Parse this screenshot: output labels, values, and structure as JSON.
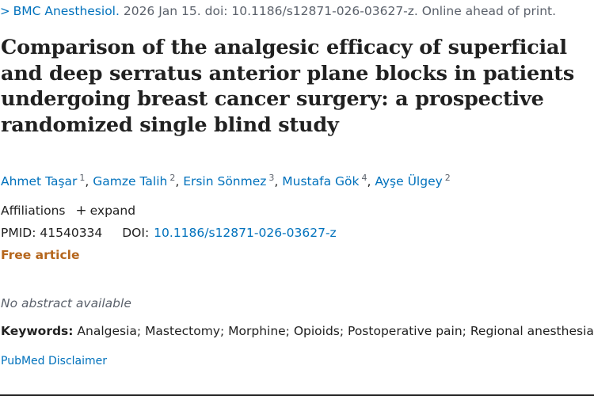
{
  "citation": {
    "chevron": ">",
    "journal": "BMC Anesthesiol.",
    "details": " 2026 Jan 15. doi: 10.1186/s12871-026-03627-z. Online ahead of print."
  },
  "title": "Comparison of the analgesic efficacy of superficial and deep serratus anterior plane blocks in patients undergoing breast cancer surgery: a prospective randomized single blind study",
  "authors": [
    {
      "name": "Ahmet Taşar",
      "sup": "1"
    },
    {
      "name": "Gamze Talih",
      "sup": "2"
    },
    {
      "name": "Ersin Sönmez",
      "sup": "3"
    },
    {
      "name": "Mustafa Gök",
      "sup": "4"
    },
    {
      "name": "Ayşe Ülgey",
      "sup": "2"
    }
  ],
  "affiliations": {
    "label": "Affiliations",
    "expand_icon": "+",
    "expand_label": "expand"
  },
  "ids": {
    "pmid_label": "PMID:",
    "pmid": "41540334",
    "doi_label": "DOI:",
    "doi": "10.1186/s12871-026-03627-z"
  },
  "free_article": "Free article",
  "no_abstract": "No abstract available",
  "keywords": {
    "label": "Keywords:",
    "text": " Analgesia; Mastectomy; Morphine; Opioids; Postoperative pain; Regional anesthesia."
  },
  "disclaimer": "PubMed Disclaimer",
  "colors": {
    "link": "#0071bc",
    "free_article": "#b5661c",
    "muted": "#5b616b",
    "text": "#212121"
  }
}
